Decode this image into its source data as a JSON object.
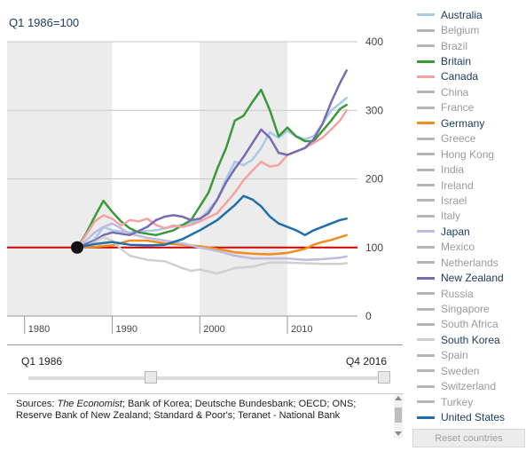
{
  "chart_data": {
    "type": "line",
    "title": "Q1 1986=100",
    "xlim": [
      1978,
      2018
    ],
    "ylim": [
      0,
      400
    ],
    "x_ticks": [
      "1980",
      "1990",
      "2000",
      "2010"
    ],
    "y_ticks": [
      "0",
      "100",
      "200",
      "300",
      "400"
    ],
    "reference_value": 100,
    "reference_point": {
      "x": 1986,
      "y": 100
    },
    "shaded_decades": [
      [
        1978,
        1990
      ],
      [
        2000,
        2010
      ]
    ],
    "series": [
      {
        "name": "Australia",
        "color": "#a6cbe6",
        "x": [
          1986,
          1988,
          1989,
          1990,
          1992,
          1995,
          1998,
          2000,
          2002,
          2003,
          2004,
          2005,
          2006,
          2007,
          2008,
          2009,
          2010,
          2011,
          2012,
          2013,
          2014,
          2015,
          2016,
          2016.75
        ],
        "y": [
          100,
          112,
          130,
          125,
          122,
          125,
          133,
          140,
          170,
          200,
          225,
          220,
          228,
          245,
          268,
          260,
          270,
          262,
          258,
          262,
          280,
          300,
          310,
          318
        ]
      },
      {
        "name": "Britain",
        "color": "#3a9a3a",
        "x": [
          1986,
          1987,
          1988,
          1989,
          1990,
          1991,
          1992,
          1993,
          1995,
          1997,
          1999,
          2000,
          2001,
          2002,
          2003,
          2004,
          2005,
          2006,
          2007,
          2008,
          2009,
          2010,
          2011,
          2012,
          2013,
          2014,
          2015,
          2016,
          2016.75
        ],
        "y": [
          100,
          120,
          145,
          168,
          152,
          138,
          128,
          122,
          118,
          125,
          140,
          160,
          180,
          215,
          245,
          285,
          292,
          312,
          330,
          300,
          262,
          275,
          262,
          255,
          255,
          270,
          285,
          302,
          308
        ]
      },
      {
        "name": "Canada",
        "color": "#f4a3a3",
        "x": [
          1986,
          1987,
          1988,
          1989,
          1990,
          1991,
          1992,
          1993,
          1994,
          1995,
          1996,
          1997,
          1998,
          1999,
          2000,
          2002,
          2004,
          2005,
          2006,
          2007,
          2008,
          2009,
          2010,
          2012,
          2014,
          2015,
          2016,
          2016.75
        ],
        "y": [
          100,
          118,
          138,
          147,
          142,
          132,
          140,
          138,
          142,
          133,
          128,
          132,
          130,
          133,
          138,
          150,
          180,
          198,
          212,
          225,
          218,
          220,
          235,
          245,
          260,
          272,
          285,
          300
        ]
      },
      {
        "name": "Germany",
        "color": "#f28c1b",
        "x": [
          1986,
          1988,
          1990,
          1992,
          1994,
          1996,
          1998,
          2000,
          2002,
          2004,
          2006,
          2008,
          2010,
          2011,
          2012,
          2013,
          2014,
          2015,
          2016,
          2016.75
        ],
        "y": [
          100,
          101,
          103,
          110,
          110,
          106,
          104,
          102,
          98,
          93,
          91,
          90,
          92,
          95,
          98,
          104,
          108,
          111,
          115,
          118
        ]
      },
      {
        "name": "Japan",
        "color": "#bdbbe0",
        "x": [
          1986,
          1987,
          1988,
          1989,
          1990,
          1991,
          1992,
          1994,
          1996,
          1998,
          2000,
          2002,
          2004,
          2006,
          2008,
          2010,
          2012,
          2014,
          2016,
          2016.75
        ],
        "y": [
          100,
          110,
          122,
          130,
          135,
          128,
          120,
          114,
          110,
          106,
          100,
          95,
          88,
          84,
          84,
          84,
          82,
          83,
          85,
          87
        ]
      },
      {
        "name": "New Zealand",
        "color": "#7a6ab4",
        "x": [
          1986,
          1987,
          1988,
          1989,
          1990,
          1992,
          1994,
          1995,
          1996,
          1997,
          1998,
          1999,
          2000,
          2001,
          2002,
          2003,
          2004,
          2005,
          2006,
          2007,
          2008,
          2009,
          2010,
          2011,
          2012,
          2013,
          2014,
          2015,
          2016,
          2016.75
        ],
        "y": [
          100,
          105,
          110,
          118,
          122,
          118,
          130,
          140,
          145,
          147,
          145,
          140,
          142,
          150,
          170,
          195,
          215,
          232,
          252,
          272,
          260,
          238,
          235,
          240,
          245,
          258,
          280,
          312,
          340,
          358
        ]
      },
      {
        "name": "South Korea",
        "color": "#d0d0d0",
        "x": [
          1986,
          1987,
          1988,
          1989,
          1990,
          1991,
          1992,
          1994,
          1996,
          1998,
          1999,
          2000,
          2002,
          2004,
          2006,
          2008,
          2010,
          2012,
          2014,
          2016,
          2016.75
        ],
        "y": [
          100,
          102,
          108,
          115,
          110,
          98,
          88,
          82,
          80,
          70,
          66,
          68,
          62,
          70,
          72,
          78,
          78,
          77,
          76,
          76,
          77
        ]
      },
      {
        "name": "United States",
        "color": "#1f6fab",
        "x": [
          1986,
          1988,
          1990,
          1991,
          1992,
          1994,
          1996,
          1998,
          2000,
          2002,
          2004,
          2005,
          2006,
          2007,
          2008,
          2009,
          2010,
          2011,
          2012,
          2013,
          2014,
          2015,
          2016,
          2016.75
        ],
        "y": [
          100,
          105,
          108,
          106,
          104,
          103,
          104,
          112,
          125,
          140,
          162,
          175,
          170,
          160,
          145,
          135,
          130,
          125,
          118,
          125,
          130,
          135,
          140,
          142
        ]
      }
    ]
  },
  "legend": {
    "items": [
      {
        "name": "Australia",
        "color": "#a6cbe6",
        "active": true
      },
      {
        "name": "Belgium",
        "color": "#b4b4b4",
        "active": false
      },
      {
        "name": "Brazil",
        "color": "#b4b4b4",
        "active": false
      },
      {
        "name": "Britain",
        "color": "#3a9a3a",
        "active": true
      },
      {
        "name": "Canada",
        "color": "#f4a3a3",
        "active": true
      },
      {
        "name": "China",
        "color": "#b4b4b4",
        "active": false
      },
      {
        "name": "France",
        "color": "#b4b4b4",
        "active": false
      },
      {
        "name": "Germany",
        "color": "#f28c1b",
        "active": true
      },
      {
        "name": "Greece",
        "color": "#b4b4b4",
        "active": false
      },
      {
        "name": "Hong Kong",
        "color": "#b4b4b4",
        "active": false
      },
      {
        "name": "India",
        "color": "#b4b4b4",
        "active": false
      },
      {
        "name": "Ireland",
        "color": "#b4b4b4",
        "active": false
      },
      {
        "name": "Israel",
        "color": "#b4b4b4",
        "active": false
      },
      {
        "name": "Italy",
        "color": "#b4b4b4",
        "active": false
      },
      {
        "name": "Japan",
        "color": "#bdbbe0",
        "active": true
      },
      {
        "name": "Mexico",
        "color": "#b4b4b4",
        "active": false
      },
      {
        "name": "Netherlands",
        "color": "#b4b4b4",
        "active": false
      },
      {
        "name": "New Zealand",
        "color": "#7a6ab4",
        "active": true
      },
      {
        "name": "Russia",
        "color": "#b4b4b4",
        "active": false
      },
      {
        "name": "Singapore",
        "color": "#b4b4b4",
        "active": false
      },
      {
        "name": "South Africa",
        "color": "#b4b4b4",
        "active": false
      },
      {
        "name": "South Korea",
        "color": "#d0d0d0",
        "active": true
      },
      {
        "name": "Spain",
        "color": "#b4b4b4",
        "active": false
      },
      {
        "name": "Sweden",
        "color": "#b4b4b4",
        "active": false
      },
      {
        "name": "Switzerland",
        "color": "#b4b4b4",
        "active": false
      },
      {
        "name": "Turkey",
        "color": "#b4b4b4",
        "active": false
      },
      {
        "name": "United States",
        "color": "#1f6fab",
        "active": true
      }
    ]
  },
  "slider": {
    "start_label": "Q1 1986",
    "end_label": "Q4 2016"
  },
  "sources": {
    "prefix": "Sources: ",
    "publication": "The Economist",
    "rest": "; Bank of Korea; Deutsche Bundesbank; OECD; ONS; Reserve Bank of New Zealand; Standard & Poor's; Teranet - National Bank"
  },
  "reset_label": "Reset countries",
  "colors": {
    "reference_line": "#cc0000",
    "shade": "#ececec",
    "grid": "#c8c8c8",
    "axis_text": "#444444",
    "title_text": "#1b3a5c"
  }
}
